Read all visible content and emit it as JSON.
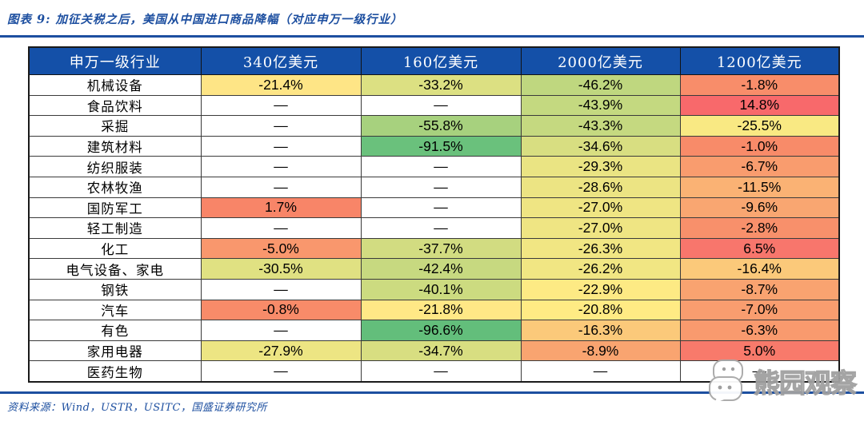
{
  "theme": {
    "accent_blue": "#1d4fa0",
    "header_bg": "#1450a8",
    "no_data_bg": "#ffffff"
  },
  "figure": {
    "title": "图表 9:  加征关税之后，美国从中国进口商品降幅（对应申万一级行业）",
    "source_note": "资料来源：Wind，USTR，USITC，国盛证券研究所",
    "watermark_text": "熊园观察"
  },
  "chart_data": {
    "type": "heatmap",
    "title": "加征关税之后，美国从中国进口商品降幅（对应申万一级行业）",
    "value_unit": "percent_change",
    "legend_note": "green = larger decline, yellow = mid decline, red = increase",
    "columns": [
      "申万一级行业",
      "340亿美元",
      "160亿美元",
      "2000亿美元",
      "1200亿美元"
    ],
    "rows": [
      {
        "label": "机械设备",
        "display": [
          "-21.4%",
          "-33.2%",
          "-46.2%",
          "-1.8%"
        ],
        "values": [
          -21.4,
          -33.2,
          -46.2,
          -1.8
        ],
        "colors": [
          "#FEE586",
          "#DCE082",
          "#BFD77F",
          "#F88D6A"
        ]
      },
      {
        "label": "食品饮料",
        "display": [
          "—",
          "—",
          "-43.9%",
          "14.8%"
        ],
        "values": [
          null,
          null,
          -43.9,
          14.8
        ],
        "colors": [
          "#FFFFFF",
          "#FFFFFF",
          "#C4D980",
          "#F8696B"
        ]
      },
      {
        "label": "采掘",
        "display": [
          "—",
          "-55.8%",
          "-43.3%",
          "-25.5%"
        ],
        "values": [
          null,
          -55.8,
          -43.3,
          -25.5
        ],
        "colors": [
          "#FFFFFF",
          "#A7D17E",
          "#C5D980",
          "#F9E983"
        ]
      },
      {
        "label": "建筑材料",
        "display": [
          "—",
          "-91.5%",
          "-34.6%",
          "-1.0%"
        ],
        "values": [
          null,
          -91.5,
          -34.6,
          -1.0
        ],
        "colors": [
          "#FFFFFF",
          "#6AC17C",
          "#D8DE81",
          "#F88B69"
        ]
      },
      {
        "label": "纺织服装",
        "display": [
          "—",
          "—",
          "-29.3%",
          "-6.7%"
        ],
        "values": [
          null,
          null,
          -29.3,
          -6.7
        ],
        "colors": [
          "#FFFFFF",
          "#FFFFFF",
          "#EAE483",
          "#F99C6E"
        ]
      },
      {
        "label": "农林牧渔",
        "display": [
          "—",
          "—",
          "-28.6%",
          "-11.5%"
        ],
        "values": [
          null,
          null,
          -28.6,
          -11.5
        ],
        "colors": [
          "#FFFFFF",
          "#FFFFFF",
          "#ECE483",
          "#FAB274"
        ]
      },
      {
        "label": "国防军工",
        "display": [
          "1.7%",
          "—",
          "-27.0%",
          "-9.6%"
        ],
        "values": [
          1.7,
          null,
          -27.0,
          -9.6
        ],
        "colors": [
          "#F88568",
          "#FFFFFF",
          "#EFE583",
          "#F9A671"
        ]
      },
      {
        "label": "轻工制造",
        "display": [
          "—",
          "—",
          "-27.0%",
          "-2.8%"
        ],
        "values": [
          null,
          null,
          -27.0,
          -2.8
        ],
        "colors": [
          "#FFFFFF",
          "#FFFFFF",
          "#EFE583",
          "#F8906B"
        ]
      },
      {
        "label": "化工",
        "display": [
          "-5.0%",
          "-37.7%",
          "-26.3%",
          "6.5%"
        ],
        "values": [
          -5.0,
          -37.7,
          -26.3,
          6.5
        ],
        "colors": [
          "#F9976D",
          "#D2DC81",
          "#F1E683",
          "#F8766C"
        ]
      },
      {
        "label": "电气设备、家电",
        "display": [
          "-30.5%",
          "-42.4%",
          "-26.2%",
          "-16.4%"
        ],
        "values": [
          -30.5,
          -42.4,
          -26.2,
          -16.4
        ],
        "colors": [
          "#E0E182",
          "#C7D980",
          "#F1E683",
          "#FBC97A"
        ]
      },
      {
        "label": "钢铁",
        "display": [
          "—",
          "-40.1%",
          "-22.9%",
          "-8.7%"
        ],
        "values": [
          null,
          -40.1,
          -22.9,
          -8.7
        ],
        "colors": [
          "#FFFFFF",
          "#CCDB80",
          "#FDEA84",
          "#F9A370"
        ]
      },
      {
        "label": "汽车",
        "display": [
          "-0.8%",
          "-21.8%",
          "-20.8%",
          "-7.0%"
        ],
        "values": [
          -0.8,
          -21.8,
          -20.8,
          -7.0
        ],
        "colors": [
          "#F88B69",
          "#FFE886",
          "#FFEB84",
          "#F99D6F"
        ]
      },
      {
        "label": "有色",
        "display": [
          "—",
          "-96.6%",
          "-16.3%",
          "-6.3%"
        ],
        "values": [
          null,
          -96.6,
          -16.3,
          -6.3
        ],
        "colors": [
          "#FFFFFF",
          "#63BE7B",
          "#FBC97A",
          "#F99A6E"
        ]
      },
      {
        "label": "家用电器",
        "display": [
          "-27.9%",
          "-34.7%",
          "-8.9%",
          "5.0%"
        ],
        "values": [
          -27.9,
          -34.7,
          -8.9,
          5.0
        ],
        "colors": [
          "#EDE583",
          "#D8DE81",
          "#F9A470",
          "#F87A6B"
        ]
      },
      {
        "label": "医药生物",
        "display": [
          "—",
          "—",
          "—",
          "—"
        ],
        "values": [
          null,
          null,
          null,
          null
        ],
        "colors": [
          "#FFFFFF",
          "#FFFFFF",
          "#FFFFFF",
          "#FFFFFF"
        ]
      }
    ]
  }
}
